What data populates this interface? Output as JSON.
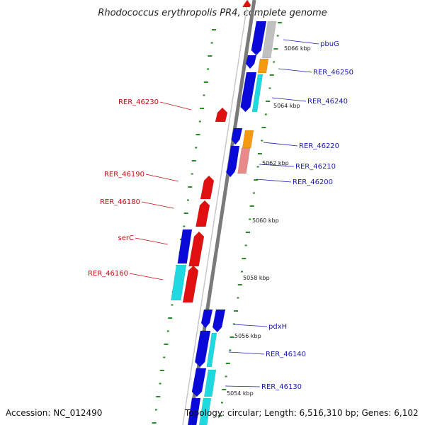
{
  "title": "Rhodococcus erythropolis PR4, complete genome",
  "footer": {
    "accession": "Accession: NC_012490",
    "topology": "Topology: circular; Length: 6,516,310 bp; Genes: 6,102"
  },
  "colors": {
    "forward": "#0a0ad8",
    "reverse": "#e01010",
    "orange": "#f59a10",
    "cyan": "#20d8e0",
    "pink": "#e88a8a",
    "gray": "#c0c0c0",
    "backbone": "#7a7a7a",
    "tick_green": "#2a8a2a",
    "label_blue": "#1a1ab0",
    "label_red": "#c01010"
  },
  "scale_labels": [
    "5066 kbp",
    "5064 kbp",
    "5062 kbp",
    "5060 kbp",
    "5058 kbp",
    "5056 kbp",
    "5054 kbp"
  ],
  "genes_right": [
    "pbuG",
    "RER_46250",
    "RER_46240",
    "RER_46220",
    "RER_46210",
    "RER_46200",
    "pdxH",
    "RER_46140",
    "RER_46130"
  ],
  "genes_left": [
    "RER_46230",
    "RER_46190",
    "RER_46180",
    "serC",
    "RER_46160"
  ]
}
